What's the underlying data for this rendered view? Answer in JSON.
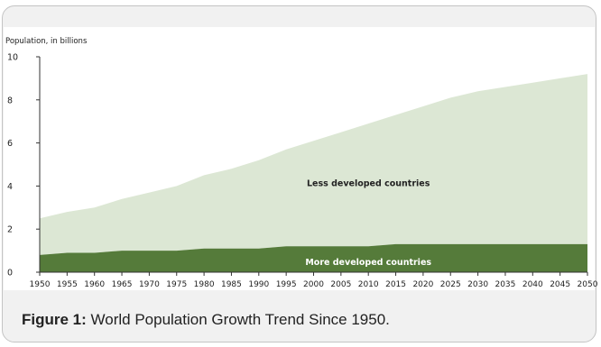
{
  "caption": {
    "label": "Figure 1:",
    "text": " World Population Growth Trend Since 1950."
  },
  "colors": {
    "less_developed": "#dce7d4",
    "more_developed": "#557b3a",
    "axis": "#333333"
  },
  "chart_data": {
    "type": "area",
    "stacked": true,
    "title": "",
    "ylabel": "Population, in billions",
    "xlabel": "",
    "ylim": [
      0,
      10
    ],
    "y_ticks": [
      0,
      2,
      4,
      6,
      8,
      10
    ],
    "x_ticks": [
      1950,
      1955,
      1960,
      1965,
      1970,
      1975,
      1980,
      1985,
      1990,
      1995,
      2000,
      2005,
      2010,
      2015,
      2020,
      2025,
      2030,
      2035,
      2040,
      2045,
      2050
    ],
    "grid": false,
    "legend": "none",
    "x": [
      1950,
      1955,
      1960,
      1965,
      1970,
      1975,
      1980,
      1985,
      1990,
      1995,
      2000,
      2005,
      2010,
      2015,
      2020,
      2025,
      2030,
      2035,
      2040,
      2045,
      2050
    ],
    "series": [
      {
        "name": "More developed countries",
        "values": [
          0.8,
          0.9,
          0.9,
          1.0,
          1.0,
          1.0,
          1.1,
          1.1,
          1.1,
          1.2,
          1.2,
          1.2,
          1.2,
          1.3,
          1.3,
          1.3,
          1.3,
          1.3,
          1.3,
          1.3,
          1.3
        ]
      },
      {
        "name": "Less developed countries",
        "values": [
          1.7,
          1.9,
          2.1,
          2.4,
          2.7,
          3.0,
          3.4,
          3.7,
          4.1,
          4.5,
          4.9,
          5.3,
          5.7,
          6.0,
          6.4,
          6.8,
          7.1,
          7.3,
          7.5,
          7.7,
          7.9
        ]
      }
    ]
  }
}
